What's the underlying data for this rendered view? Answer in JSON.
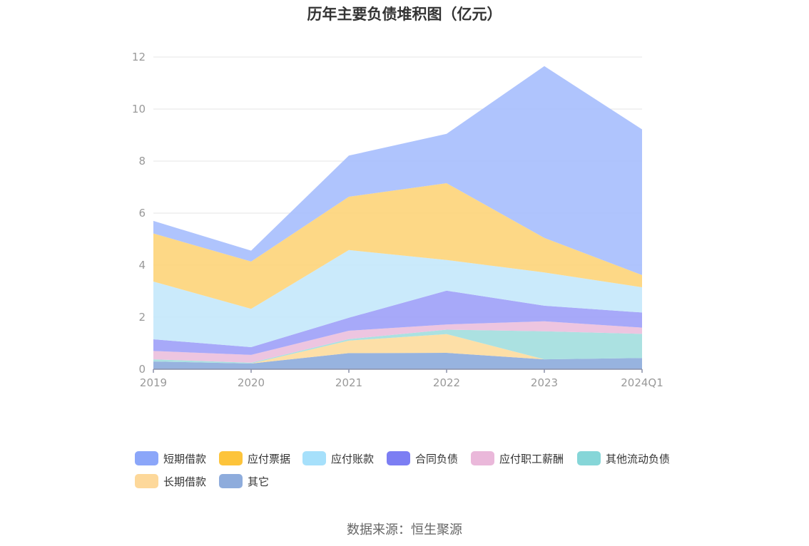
{
  "chart_data": {
    "type": "area",
    "stacked": true,
    "title": "历年主要负债堆积图（亿元）",
    "categories": [
      "2019",
      "2020",
      "2021",
      "2022",
      "2023",
      "2024Q1"
    ],
    "ylim": [
      0,
      12
    ],
    "yticks": [
      0,
      2,
      4,
      6,
      8,
      10,
      12
    ],
    "grid": true,
    "legend_position": "bottom",
    "series": [
      {
        "name": "其它",
        "color": "#8eacdc",
        "values": [
          0.3,
          0.22,
          0.62,
          0.63,
          0.38,
          0.43
        ]
      },
      {
        "name": "长期借款",
        "color": "#fddca0",
        "values": [
          0.0,
          0.0,
          0.48,
          0.72,
          0.0,
          0.0
        ]
      },
      {
        "name": "其他流动负债",
        "color": "#a4dede",
        "values": [
          0.08,
          0.03,
          0.06,
          0.17,
          1.08,
          0.93
        ]
      },
      {
        "name": "应付职工薪酬",
        "color": "#ebc0dd",
        "values": [
          0.32,
          0.3,
          0.32,
          0.2,
          0.38,
          0.24
        ]
      },
      {
        "name": "合同负债",
        "color": "#9fa2f8",
        "values": [
          0.45,
          0.3,
          0.5,
          1.3,
          0.6,
          0.58
        ]
      },
      {
        "name": "应付账款",
        "color": "#c5e8fb",
        "values": [
          2.22,
          1.47,
          2.6,
          1.18,
          1.28,
          0.97
        ]
      },
      {
        "name": "应付票据",
        "color": "#fdd57c",
        "values": [
          1.85,
          1.82,
          2.05,
          2.95,
          1.33,
          0.47
        ]
      },
      {
        "name": "短期借款",
        "color": "#a8bffd",
        "values": [
          0.48,
          0.42,
          1.58,
          1.9,
          6.6,
          5.6
        ]
      }
    ]
  },
  "legend": [
    {
      "label": "短期借款",
      "color": "#8ba6f9"
    },
    {
      "label": "应付票据",
      "color": "#fdc43b"
    },
    {
      "label": "应付账款",
      "color": "#a6e0fb"
    },
    {
      "label": "合同负债",
      "color": "#7c7ef3"
    },
    {
      "label": "应付职工薪酬",
      "color": "#eab8da"
    },
    {
      "label": "其他流动负债",
      "color": "#86d6d8"
    },
    {
      "label": "长期借款",
      "color": "#fdd89a"
    },
    {
      "label": "其它",
      "color": "#8eacdc"
    }
  ],
  "source_note": "数据来源：恒生聚源"
}
